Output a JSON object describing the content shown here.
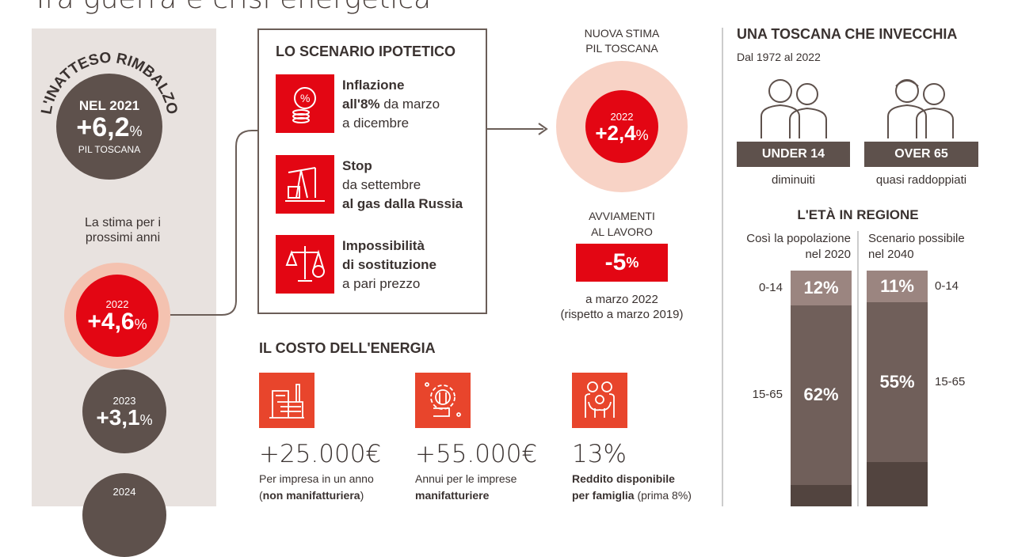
{
  "header": {
    "title": "Tra guerra e crisi energetica"
  },
  "left": {
    "arc_title": "L'INATTESO RIMBALZO",
    "y2021": {
      "label": "NEL 2021",
      "value": "+6,2",
      "unit": "%",
      "caption": "PIL TOSCANA"
    },
    "forecast_label": "La stima per i prossimi anni",
    "forecasts": [
      {
        "year": "2022",
        "value": "+4,6",
        "unit": "%"
      },
      {
        "year": "2023",
        "value": "+3,1",
        "unit": "%"
      },
      {
        "year": "2024",
        "value": "",
        "unit": ""
      }
    ]
  },
  "scenario": {
    "title": "LO SCENARIO IPOTETICO",
    "items": [
      {
        "icon": "inflation-coins-icon",
        "bold": "Inflazione",
        "l2b": "all'8%",
        "l2": " da marzo",
        "l3": "a dicembre"
      },
      {
        "icon": "gas-pump-jack-icon",
        "bold": "Stop",
        "l2": "da settembre",
        "l3b": "al gas dalla Russia"
      },
      {
        "icon": "scales-euro-icon",
        "bold": "Impossibilità",
        "l2b": "di sostituzione",
        "l3": "a pari prezzo"
      }
    ]
  },
  "estimate": {
    "title1": "NUOVA STIMA",
    "title2": "PIL TOSCANA",
    "year": "2022",
    "value": "+2,4",
    "unit": "%"
  },
  "jobs": {
    "title1": "AVVIAMENTI",
    "title2": "AL LAVORO",
    "value": "-5",
    "unit": "%",
    "note1": "a marzo 2022",
    "note2": "(rispetto a marzo 2019)"
  },
  "energy": {
    "title": "IL COSTO DELL'ENERGIA",
    "items": [
      {
        "icon": "factory-icon",
        "value": "+25.000€",
        "d1": "Per impresa in un anno",
        "d2a": "(",
        "d2b": "non manifatturiera",
        "d2c": ")"
      },
      {
        "icon": "gear-wrench-icon",
        "value": "+55.000€",
        "d1": "Annui per le imprese",
        "d2b": "manifatturiere"
      },
      {
        "icon": "family-icon",
        "value": "13%",
        "d1b": "Reddito disponibile",
        "d2b": "per famiglia",
        "d2c": " (prima 8%)"
      }
    ]
  },
  "aging": {
    "title": "UNA TOSCANA CHE INVECCHIA",
    "subtitle": "Dal 1972 al 2022",
    "groups": [
      {
        "tag": "UNDER 14",
        "note": "diminuiti"
      },
      {
        "tag": "OVER 65",
        "note": "quasi raddoppiati"
      }
    ]
  },
  "chart_data": {
    "type": "bar",
    "stacked": true,
    "title": "L'ETÀ IN REGIONE",
    "categories": [
      "Così la popolazione nel 2020",
      "Scenario possibile nel 2040"
    ],
    "cat_lines": [
      [
        "Così la popolazione",
        "nel 2020"
      ],
      [
        "Scenario possibile",
        "nel 2040"
      ]
    ],
    "series": [
      {
        "name": "0-14",
        "values": [
          12,
          11
        ],
        "labels": [
          "12%",
          "11%"
        ],
        "color": "#9b8580"
      },
      {
        "name": "15-65",
        "values": [
          62,
          55
        ],
        "labels": [
          "62%",
          "55%"
        ],
        "color": "#705f5a"
      },
      {
        "values": [
          null,
          null
        ],
        "color": "#52443f"
      }
    ]
  },
  "colors": {
    "red": "#e30613",
    "peach": "#f4c2b0",
    "brown": "#5e514c",
    "orange": "#e8452c",
    "panel": "#e8e2df"
  }
}
